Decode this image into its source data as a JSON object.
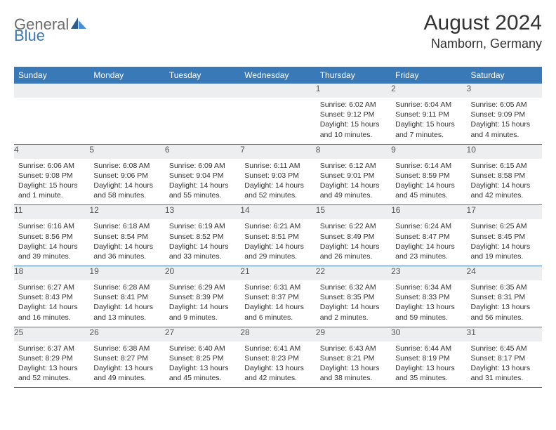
{
  "brand": {
    "part1": "General",
    "part2": "Blue"
  },
  "title": "August 2024",
  "location": "Namborn, Germany",
  "colors": {
    "accent": "#3a79b7",
    "header_bg": "#3a79b7",
    "header_text": "#ffffff",
    "cell_bg": "#eceef0",
    "body_text": "#333333",
    "page_bg": "#ffffff"
  },
  "fonts": {
    "title_size": 30,
    "location_size": 18,
    "day_header_size": 12,
    "date_size": 12,
    "info_size": 10.5
  },
  "day_headers": [
    "Sunday",
    "Monday",
    "Tuesday",
    "Wednesday",
    "Thursday",
    "Friday",
    "Saturday"
  ],
  "weeks": [
    [
      {
        "date": "",
        "sunrise": "",
        "sunset": "",
        "daylight": ""
      },
      {
        "date": "",
        "sunrise": "",
        "sunset": "",
        "daylight": ""
      },
      {
        "date": "",
        "sunrise": "",
        "sunset": "",
        "daylight": ""
      },
      {
        "date": "",
        "sunrise": "",
        "sunset": "",
        "daylight": ""
      },
      {
        "date": "1",
        "sunrise": "Sunrise: 6:02 AM",
        "sunset": "Sunset: 9:12 PM",
        "daylight": "Daylight: 15 hours and 10 minutes."
      },
      {
        "date": "2",
        "sunrise": "Sunrise: 6:04 AM",
        "sunset": "Sunset: 9:11 PM",
        "daylight": "Daylight: 15 hours and 7 minutes."
      },
      {
        "date": "3",
        "sunrise": "Sunrise: 6:05 AM",
        "sunset": "Sunset: 9:09 PM",
        "daylight": "Daylight: 15 hours and 4 minutes."
      }
    ],
    [
      {
        "date": "4",
        "sunrise": "Sunrise: 6:06 AM",
        "sunset": "Sunset: 9:08 PM",
        "daylight": "Daylight: 15 hours and 1 minute."
      },
      {
        "date": "5",
        "sunrise": "Sunrise: 6:08 AM",
        "sunset": "Sunset: 9:06 PM",
        "daylight": "Daylight: 14 hours and 58 minutes."
      },
      {
        "date": "6",
        "sunrise": "Sunrise: 6:09 AM",
        "sunset": "Sunset: 9:04 PM",
        "daylight": "Daylight: 14 hours and 55 minutes."
      },
      {
        "date": "7",
        "sunrise": "Sunrise: 6:11 AM",
        "sunset": "Sunset: 9:03 PM",
        "daylight": "Daylight: 14 hours and 52 minutes."
      },
      {
        "date": "8",
        "sunrise": "Sunrise: 6:12 AM",
        "sunset": "Sunset: 9:01 PM",
        "daylight": "Daylight: 14 hours and 49 minutes."
      },
      {
        "date": "9",
        "sunrise": "Sunrise: 6:14 AM",
        "sunset": "Sunset: 8:59 PM",
        "daylight": "Daylight: 14 hours and 45 minutes."
      },
      {
        "date": "10",
        "sunrise": "Sunrise: 6:15 AM",
        "sunset": "Sunset: 8:58 PM",
        "daylight": "Daylight: 14 hours and 42 minutes."
      }
    ],
    [
      {
        "date": "11",
        "sunrise": "Sunrise: 6:16 AM",
        "sunset": "Sunset: 8:56 PM",
        "daylight": "Daylight: 14 hours and 39 minutes."
      },
      {
        "date": "12",
        "sunrise": "Sunrise: 6:18 AM",
        "sunset": "Sunset: 8:54 PM",
        "daylight": "Daylight: 14 hours and 36 minutes."
      },
      {
        "date": "13",
        "sunrise": "Sunrise: 6:19 AM",
        "sunset": "Sunset: 8:52 PM",
        "daylight": "Daylight: 14 hours and 33 minutes."
      },
      {
        "date": "14",
        "sunrise": "Sunrise: 6:21 AM",
        "sunset": "Sunset: 8:51 PM",
        "daylight": "Daylight: 14 hours and 29 minutes."
      },
      {
        "date": "15",
        "sunrise": "Sunrise: 6:22 AM",
        "sunset": "Sunset: 8:49 PM",
        "daylight": "Daylight: 14 hours and 26 minutes."
      },
      {
        "date": "16",
        "sunrise": "Sunrise: 6:24 AM",
        "sunset": "Sunset: 8:47 PM",
        "daylight": "Daylight: 14 hours and 23 minutes."
      },
      {
        "date": "17",
        "sunrise": "Sunrise: 6:25 AM",
        "sunset": "Sunset: 8:45 PM",
        "daylight": "Daylight: 14 hours and 19 minutes."
      }
    ],
    [
      {
        "date": "18",
        "sunrise": "Sunrise: 6:27 AM",
        "sunset": "Sunset: 8:43 PM",
        "daylight": "Daylight: 14 hours and 16 minutes."
      },
      {
        "date": "19",
        "sunrise": "Sunrise: 6:28 AM",
        "sunset": "Sunset: 8:41 PM",
        "daylight": "Daylight: 14 hours and 13 minutes."
      },
      {
        "date": "20",
        "sunrise": "Sunrise: 6:29 AM",
        "sunset": "Sunset: 8:39 PM",
        "daylight": "Daylight: 14 hours and 9 minutes."
      },
      {
        "date": "21",
        "sunrise": "Sunrise: 6:31 AM",
        "sunset": "Sunset: 8:37 PM",
        "daylight": "Daylight: 14 hours and 6 minutes."
      },
      {
        "date": "22",
        "sunrise": "Sunrise: 6:32 AM",
        "sunset": "Sunset: 8:35 PM",
        "daylight": "Daylight: 14 hours and 2 minutes."
      },
      {
        "date": "23",
        "sunrise": "Sunrise: 6:34 AM",
        "sunset": "Sunset: 8:33 PM",
        "daylight": "Daylight: 13 hours and 59 minutes."
      },
      {
        "date": "24",
        "sunrise": "Sunrise: 6:35 AM",
        "sunset": "Sunset: 8:31 PM",
        "daylight": "Daylight: 13 hours and 56 minutes."
      }
    ],
    [
      {
        "date": "25",
        "sunrise": "Sunrise: 6:37 AM",
        "sunset": "Sunset: 8:29 PM",
        "daylight": "Daylight: 13 hours and 52 minutes."
      },
      {
        "date": "26",
        "sunrise": "Sunrise: 6:38 AM",
        "sunset": "Sunset: 8:27 PM",
        "daylight": "Daylight: 13 hours and 49 minutes."
      },
      {
        "date": "27",
        "sunrise": "Sunrise: 6:40 AM",
        "sunset": "Sunset: 8:25 PM",
        "daylight": "Daylight: 13 hours and 45 minutes."
      },
      {
        "date": "28",
        "sunrise": "Sunrise: 6:41 AM",
        "sunset": "Sunset: 8:23 PM",
        "daylight": "Daylight: 13 hours and 42 minutes."
      },
      {
        "date": "29",
        "sunrise": "Sunrise: 6:43 AM",
        "sunset": "Sunset: 8:21 PM",
        "daylight": "Daylight: 13 hours and 38 minutes."
      },
      {
        "date": "30",
        "sunrise": "Sunrise: 6:44 AM",
        "sunset": "Sunset: 8:19 PM",
        "daylight": "Daylight: 13 hours and 35 minutes."
      },
      {
        "date": "31",
        "sunrise": "Sunrise: 6:45 AM",
        "sunset": "Sunset: 8:17 PM",
        "daylight": "Daylight: 13 hours and 31 minutes."
      }
    ]
  ]
}
